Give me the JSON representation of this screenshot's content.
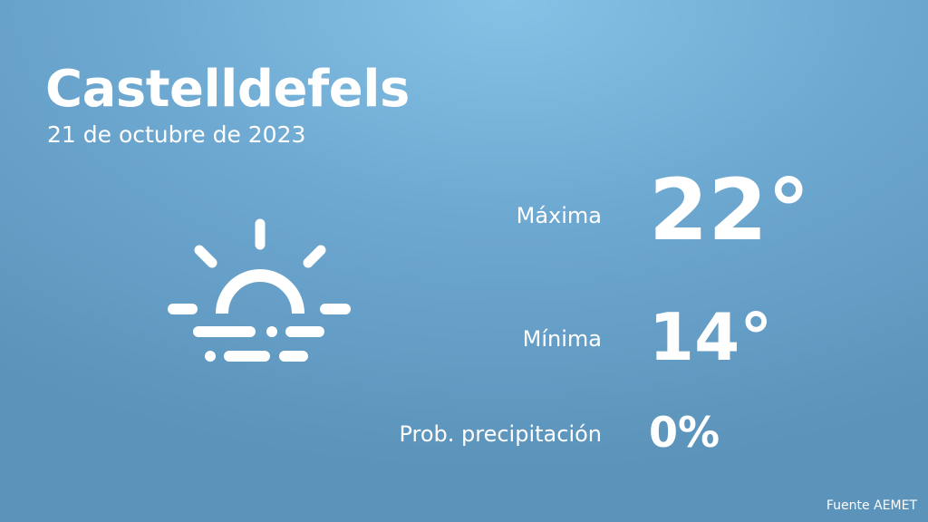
{
  "location": {
    "city": "Castelldefels",
    "date": "21 de octubre de 2023"
  },
  "weather_icon": "sunrise-fog-icon",
  "stats": {
    "max_label": "Máxima",
    "max_value": "22°",
    "min_label": "Mínima",
    "min_value": "14°",
    "precip_label": "Prob. precipitación",
    "precip_value": "0%"
  },
  "source": "Fuente AEMET",
  "colors": {
    "background_top": "#86c2e6",
    "background_bottom": "#5b93ba",
    "text": "#ffffff"
  }
}
